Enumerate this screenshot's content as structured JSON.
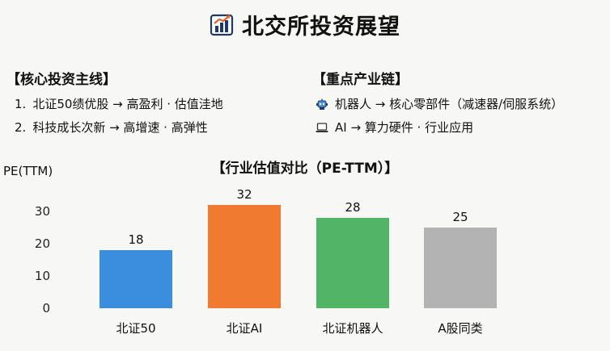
{
  "header": {
    "title": "北交所投资展望",
    "icon": "bar-chart-icon"
  },
  "core": {
    "title": "【核心投资主线】",
    "items": [
      {
        "num": "1.",
        "text": "北证50绩优股 → 高盈利 · 估值洼地"
      },
      {
        "num": "2.",
        "text": "科技成长次新 → 高增速 · 高弹性"
      }
    ]
  },
  "chain": {
    "title": "【重点产业链】",
    "items": [
      {
        "icon": "robot-icon",
        "text": "机器人 → 核心零部件（减速器/伺服系统）"
      },
      {
        "icon": "laptop-icon",
        "text": "AI → 算力硬件 · 行业应用"
      }
    ]
  },
  "colors": {
    "blue": "#3b8ede",
    "orange": "#ef7a30",
    "green": "#52b466",
    "gray": "#b3b3b3"
  },
  "chart_data": {
    "type": "bar",
    "title": "【行业估值对比（PE-TTM）】",
    "ylabel": "PE(TTM)",
    "xlabel": "",
    "categories": [
      "北证50",
      "北证AI",
      "北证机器人",
      "A股同类"
    ],
    "values": [
      18,
      32,
      28,
      25
    ],
    "data_labels": [
      "18",
      "32",
      "28",
      "25"
    ],
    "colors": [
      "#3b8ede",
      "#ef7a30",
      "#52b466",
      "#b3b3b3"
    ],
    "ylim": [
      0,
      32
    ],
    "yticks": [
      0,
      10,
      20,
      30
    ],
    "grid": false,
    "legend": "none"
  }
}
